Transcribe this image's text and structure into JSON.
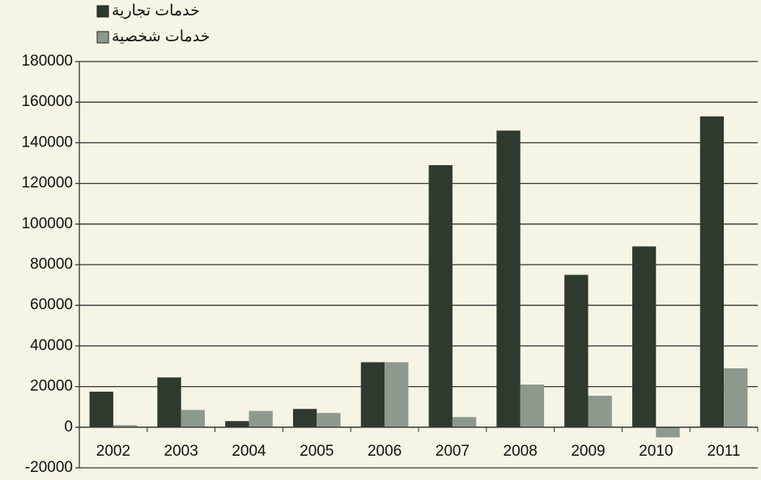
{
  "chart_data": {
    "type": "bar",
    "categories": [
      "2002",
      "2003",
      "2004",
      "2005",
      "2006",
      "2007",
      "2008",
      "2009",
      "2010",
      "2011"
    ],
    "series": [
      {
        "name": "خدمات تجارية",
        "color": "#2f3a2f",
        "values": [
          17500,
          24500,
          3000,
          9000,
          32000,
          129000,
          146000,
          75000,
          89000,
          153000
        ]
      },
      {
        "name": "خدمات شخصية",
        "color": "#8e998e",
        "values": [
          1000,
          8500,
          8000,
          7000,
          32000,
          5000,
          21000,
          15500,
          -5000,
          29000
        ]
      }
    ],
    "ylim": [
      -20000,
      180000
    ],
    "yticks": [
      -20000,
      0,
      20000,
      40000,
      60000,
      80000,
      100000,
      120000,
      140000,
      160000,
      180000
    ],
    "grid": true,
    "legend": "top-left"
  }
}
